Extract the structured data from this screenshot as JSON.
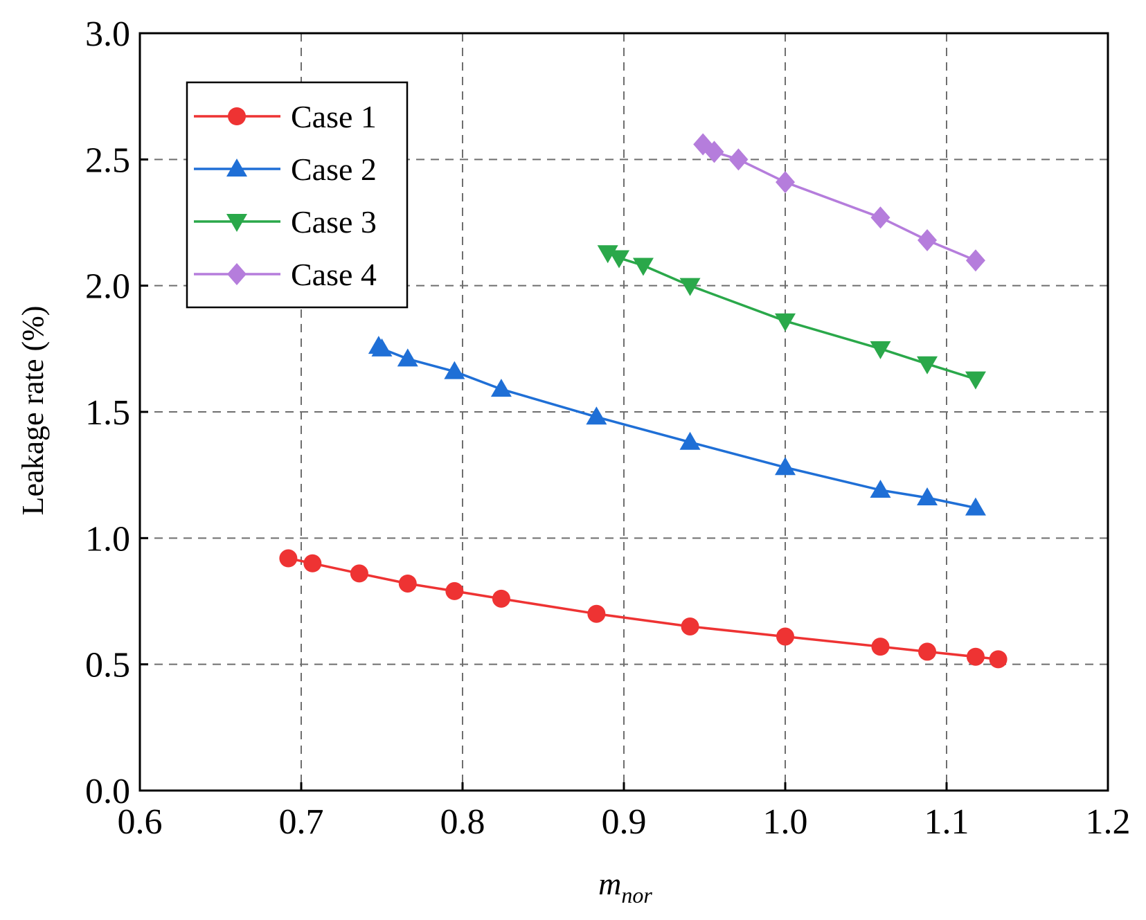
{
  "chart_data": {
    "type": "line",
    "title": "",
    "xlabel": "m",
    "xlabel_subscript": "nor",
    "ylabel": "Leakage rate (%)",
    "xlim": [
      0.6,
      1.2
    ],
    "ylim": [
      0.0,
      3.0
    ],
    "xticks": [
      "0.6",
      "0.7",
      "0.8",
      "0.9",
      "1.0",
      "1.1",
      "1.2"
    ],
    "yticks": [
      "0.0",
      "0.5",
      "1.0",
      "1.5",
      "2.0",
      "2.5",
      "3.0"
    ],
    "grid": true,
    "legend_position": "top-left",
    "series": [
      {
        "name": "Case 1",
        "color": "#ee3333",
        "marker": "circle",
        "x": [
          0.692,
          0.707,
          0.736,
          0.766,
          0.795,
          0.824,
          0.883,
          0.941,
          1.0,
          1.059,
          1.088,
          1.118,
          1.132
        ],
        "y": [
          0.92,
          0.9,
          0.86,
          0.82,
          0.79,
          0.76,
          0.7,
          0.65,
          0.61,
          0.57,
          0.55,
          0.53,
          0.52
        ]
      },
      {
        "name": "Case 2",
        "color": "#1f6fd6",
        "marker": "triangle-up",
        "x": [
          0.748,
          0.75,
          0.766,
          0.795,
          0.824,
          0.883,
          0.941,
          1.0,
          1.059,
          1.088,
          1.118
        ],
        "y": [
          1.76,
          1.75,
          1.71,
          1.66,
          1.59,
          1.48,
          1.38,
          1.28,
          1.19,
          1.16,
          1.12
        ]
      },
      {
        "name": "Case 3",
        "color": "#2aa84a",
        "marker": "triangle-down",
        "x": [
          0.89,
          0.897,
          0.912,
          0.941,
          1.0,
          1.059,
          1.088,
          1.118
        ],
        "y": [
          2.13,
          2.11,
          2.08,
          2.0,
          1.86,
          1.75,
          1.69,
          1.63
        ]
      },
      {
        "name": "Case 4",
        "color": "#b57ddc",
        "marker": "diamond",
        "x": [
          0.949,
          0.956,
          0.971,
          1.0,
          1.059,
          1.088,
          1.118
        ],
        "y": [
          2.56,
          2.53,
          2.5,
          2.41,
          2.27,
          2.18,
          2.1
        ]
      }
    ]
  }
}
